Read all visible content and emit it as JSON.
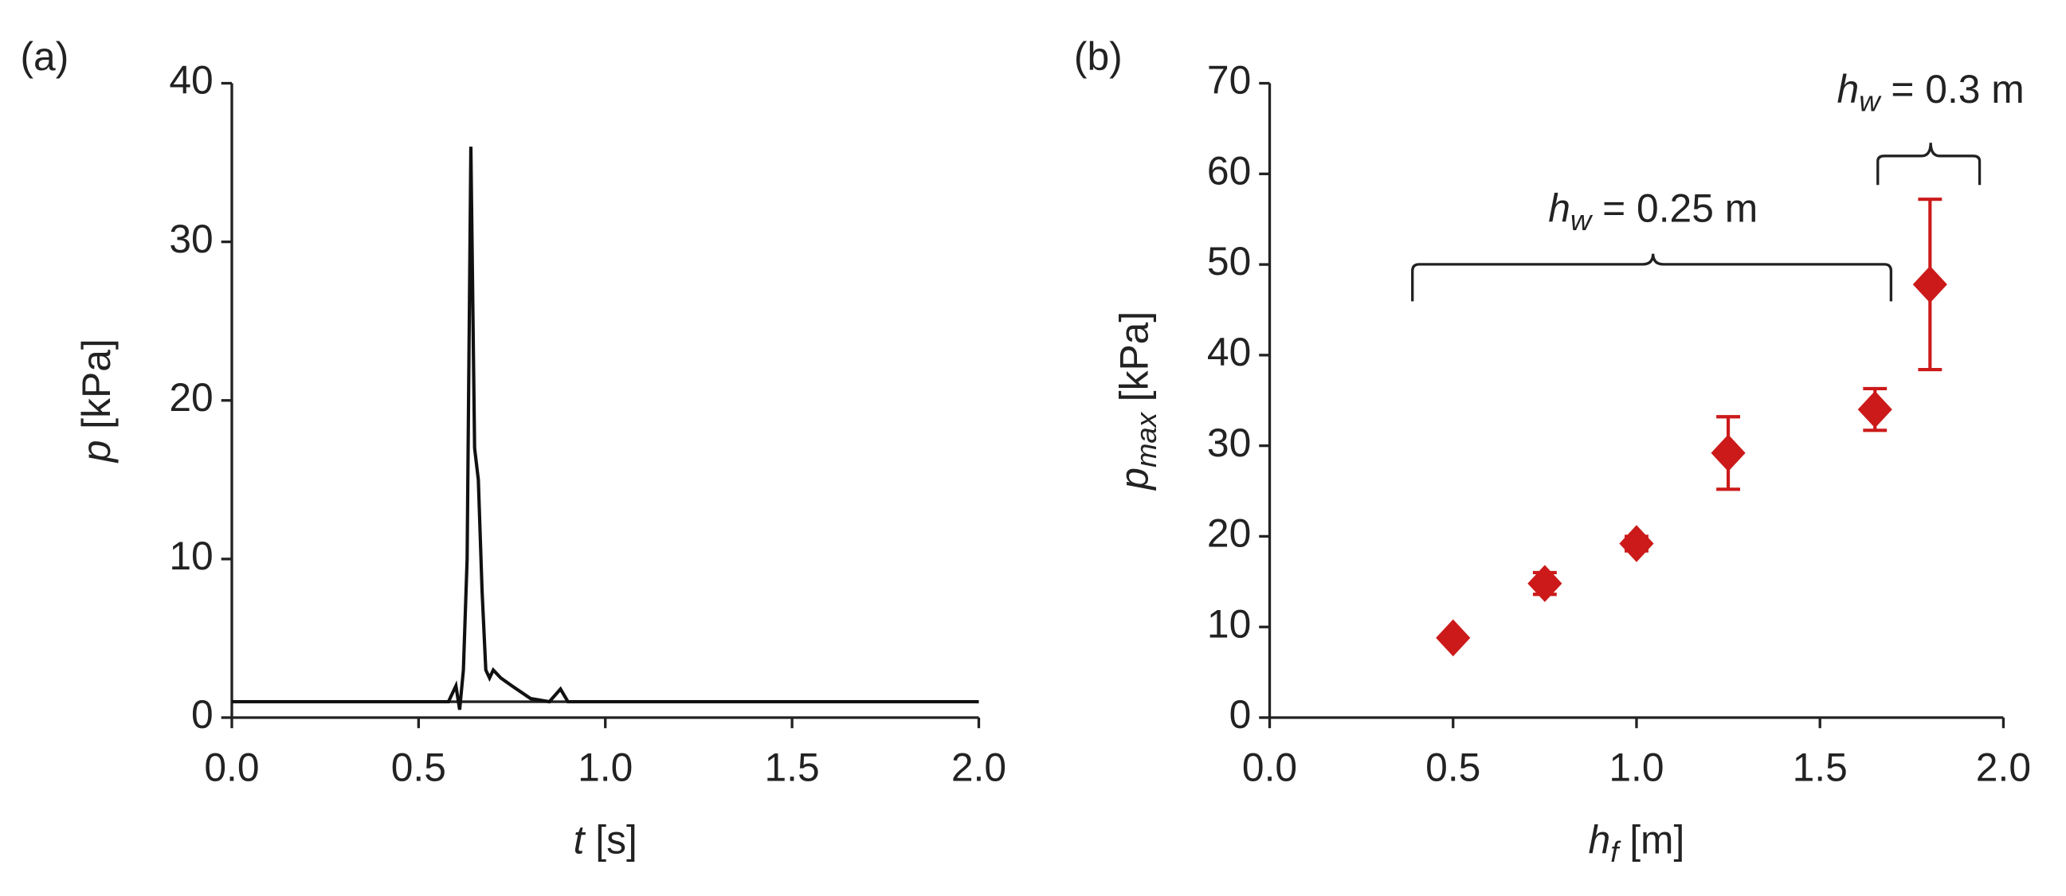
{
  "chart_data": [
    {
      "type": "line",
      "panel": "(a)",
      "x_label": {
        "symbol": "t",
        "unit": "[s]"
      },
      "y_label": {
        "symbol": "p",
        "unit": "[kPa]"
      },
      "x": [
        0,
        0.58,
        0.6,
        0.61,
        0.62,
        0.63,
        0.64,
        0.65,
        0.66,
        0.67,
        0.68,
        0.69,
        0.7,
        0.72,
        0.75,
        0.8,
        0.85,
        0.88,
        0.9,
        1.0,
        1.5,
        2.0
      ],
      "y": [
        1,
        1,
        2,
        0.5,
        3,
        10,
        36,
        17,
        15,
        8,
        3,
        2.5,
        3,
        2.5,
        2,
        1.2,
        1,
        1.8,
        1,
        1,
        1,
        1
      ],
      "color": "#111111",
      "xlim": [
        0,
        2
      ],
      "ylim": [
        0,
        40
      ],
      "xticks": [
        {
          "value": 0,
          "label": "0.0"
        },
        {
          "value": 0.5,
          "label": "0.5"
        },
        {
          "value": 1,
          "label": "1.0"
        },
        {
          "value": 1.5,
          "label": "1.5"
        },
        {
          "value": 2,
          "label": "2.0"
        }
      ],
      "yticks": [
        0,
        10,
        20,
        30,
        40
      ]
    },
    {
      "type": "scatter",
      "panel": "(b)",
      "x_label": {
        "symbol": "h",
        "subscript": "f",
        "unit": "[m]"
      },
      "y_label": {
        "symbol": "p",
        "subscript": "max",
        "unit": "[kPa]"
      },
      "x": [
        0.5,
        0.75,
        1.0,
        1.25,
        1.65,
        1.8
      ],
      "values": [
        8.8,
        14.8,
        19.2,
        29.2,
        34,
        47.8
      ],
      "errors": [
        0.3,
        1.2,
        0.8,
        4,
        2.3,
        9.4
      ],
      "color": "#cc1a1a",
      "xlim": [
        0,
        2
      ],
      "ylim": [
        0,
        70
      ],
      "xticks": [
        {
          "value": 0,
          "label": "0.0"
        },
        {
          "value": 0.5,
          "label": "0.5"
        },
        {
          "value": 1,
          "label": "1.0"
        },
        {
          "value": 1.5,
          "label": "1.5"
        },
        {
          "value": 2,
          "label": "2.0"
        }
      ],
      "yticks": [
        0,
        10,
        20,
        30,
        40,
        50,
        60,
        70
      ],
      "annotations": [
        {
          "symbol": "h",
          "subscript": "w",
          "text": "= 0.25 m"
        },
        {
          "symbol": "h",
          "subscript": "w",
          "text": "= 0.3 m"
        }
      ]
    }
  ]
}
